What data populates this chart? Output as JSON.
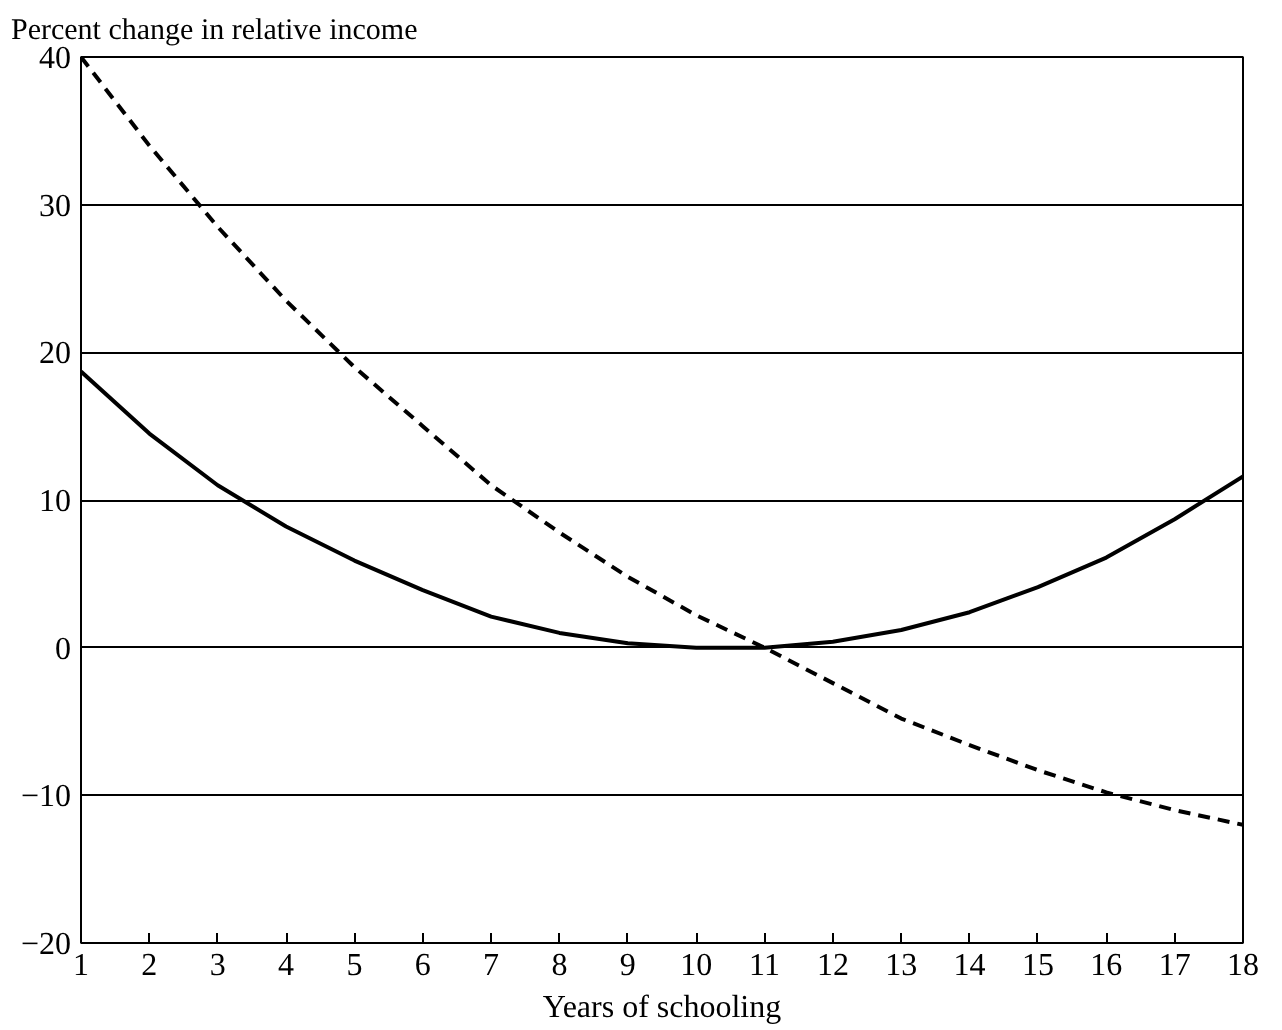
{
  "chart_data": {
    "type": "line",
    "ylabel": "Percent change in relative income",
    "xlabel": "Years of schooling",
    "x": [
      1,
      2,
      3,
      4,
      5,
      6,
      7,
      8,
      9,
      10,
      11,
      12,
      13,
      14,
      15,
      16,
      17,
      18
    ],
    "xlim": [
      1,
      18
    ],
    "xticks": [
      1,
      2,
      3,
      4,
      5,
      6,
      7,
      8,
      9,
      10,
      11,
      12,
      13,
      14,
      15,
      16,
      17,
      18
    ],
    "ylim": [
      -20,
      40
    ],
    "yticks": [
      -20,
      -10,
      0,
      10,
      20,
      30,
      40
    ],
    "grid": "y",
    "series": [
      {
        "color": "#000000",
        "line_style": "solid",
        "values": [
          18.7,
          14.5,
          11,
          8.2,
          5.9,
          3.9,
          2.1,
          1,
          0.3,
          0,
          0,
          0.4,
          1.2,
          2.4,
          4.1,
          6.1,
          8.7,
          11.6
        ]
      },
      {
        "color": "#000000",
        "line_style": "dashed",
        "values": [
          40,
          34,
          28.5,
          23.5,
          19,
          15,
          11,
          7.8,
          4.8,
          2.2,
          0,
          -2.4,
          -4.8,
          -6.6,
          -8.3,
          -9.8,
          -11,
          -12
        ]
      }
    ]
  }
}
